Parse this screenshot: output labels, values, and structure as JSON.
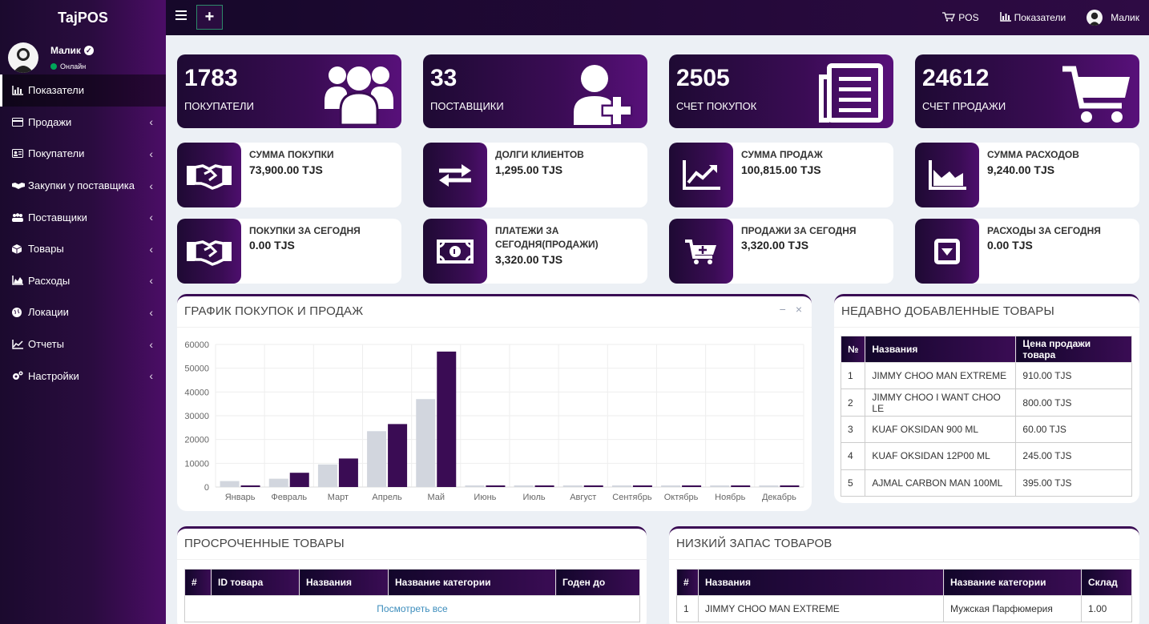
{
  "app": {
    "name": "TajPOS"
  },
  "user": {
    "name": "Малик",
    "status": "Онлайн"
  },
  "sidebar": {
    "items": [
      {
        "label": "Показатели",
        "icon": "bar-chart-icon"
      },
      {
        "label": "Продажи",
        "icon": "credit-card-icon"
      },
      {
        "label": "Покупатели",
        "icon": "id-card-icon"
      },
      {
        "label": "Закупки у поставщика",
        "icon": "handshake-icon"
      },
      {
        "label": "Поставщики",
        "icon": "users-icon"
      },
      {
        "label": "Товары",
        "icon": "cube-icon"
      },
      {
        "label": "Расходы",
        "icon": "area-chart-icon"
      },
      {
        "label": "Локации",
        "icon": "globe-icon"
      },
      {
        "label": "Отчеты",
        "icon": "line-chart-icon"
      },
      {
        "label": "Настройки",
        "icon": "cogs-icon"
      }
    ]
  },
  "topbar": {
    "pos_label": "POS",
    "stats_label": "Показатели",
    "user_label": "Малик"
  },
  "big_stats": [
    {
      "value": "1783",
      "label": "ПОКУПАТЕЛИ",
      "icon": "users-icon"
    },
    {
      "value": "33",
      "label": "ПОСТАВЩИКИ",
      "icon": "user-plus-icon"
    },
    {
      "value": "2505",
      "label": "СЧЕТ ПОКУПОК",
      "icon": "newspaper-icon"
    },
    {
      "value": "24612",
      "label": "СЧЕТ ПРОДАЖИ",
      "icon": "shopping-cart-icon"
    }
  ],
  "info_row1": [
    {
      "title": "СУММА ПОКУПКИ",
      "value": "73,900.00 TJS",
      "icon": "handshake-icon"
    },
    {
      "title": "ДОЛГИ КЛИЕНТОВ",
      "value": "1,295.00 TJS",
      "icon": "exchange-icon"
    },
    {
      "title": "СУММА ПРОДАЖ",
      "value": "100,815.00 TJS",
      "icon": "line-chart-icon"
    },
    {
      "title": "СУММА РАСХОДОВ",
      "value": "9,240.00 TJS",
      "icon": "area-chart-icon"
    }
  ],
  "info_row2": [
    {
      "title": "ПОКУПКИ ЗА СЕГОДНЯ",
      "value": "0.00 TJS",
      "icon": "handshake-icon"
    },
    {
      "title": "ПЛАТЕЖИ ЗА СЕГОДНЯ(ПРОДАЖИ)",
      "value": "3,320.00 TJS",
      "icon": "money-icon"
    },
    {
      "title": "ПРОДАЖИ ЗА СЕГОДНЯ",
      "value": "3,320.00 TJS",
      "icon": "cart-plus-icon"
    },
    {
      "title": "РАСХОДЫ ЗА СЕГОДНЯ",
      "value": "0.00 TJS",
      "icon": "caret-square-down-icon"
    }
  ],
  "chart_panel": {
    "title": "ГРАФИК ПОКУПОК И ПРОДАЖ"
  },
  "chart_data": {
    "type": "bar",
    "title": "",
    "categories": [
      "Январь",
      "Февраль",
      "Март",
      "Апрель",
      "Май",
      "Июнь",
      "Июль",
      "Август",
      "Сентябрь",
      "Октябрь",
      "Ноябрь",
      "Декабрь"
    ],
    "series": [
      {
        "values": [
          2500,
          3500,
          9500,
          23500,
          37000,
          0,
          0,
          0,
          0,
          0,
          0,
          0
        ],
        "color": "#d2d6de"
      },
      {
        "values": [
          0,
          6000,
          12000,
          26500,
          57000,
          0,
          0,
          0,
          0,
          0,
          0,
          0
        ],
        "color": "#3a0c54"
      }
    ],
    "ylim": [
      0,
      60000
    ],
    "yticks": [
      "0",
      "10000",
      "20000",
      "30000",
      "40000",
      "50000",
      "60000"
    ],
    "grid": true
  },
  "recent": {
    "title": "НЕДАВНО ДОБАВЛЕННЫЕ ТОВАРЫ",
    "headers": [
      "№",
      "Названия",
      "Цена продажи товара"
    ],
    "rows": [
      [
        "1",
        "JIMMY CHOO MAN EXTREME",
        "910.00 TJS"
      ],
      [
        "2",
        "JIMMY CHOO I WANT CHOO LE",
        "800.00 TJS"
      ],
      [
        "3",
        "KUAF OKSIDAN 900 ML",
        "60.00 TJS"
      ],
      [
        "4",
        "KUAF OKSIDAN 12P00 ML",
        "245.00 TJS"
      ],
      [
        "5",
        "AJMAL CARBON MAN 100ML",
        "395.00 TJS"
      ]
    ]
  },
  "expired": {
    "title": "ПРОСРОЧЕННЫЕ ТОВАРЫ",
    "headers": [
      "#",
      "ID товара",
      "Названия",
      "Название категории",
      "Годен до"
    ],
    "view_all": "Посмотреть все"
  },
  "low_stock": {
    "title": "НИЗКИЙ ЗАПАС ТОВАРОВ",
    "headers": [
      "#",
      "Названия",
      "Название категории",
      "Склад"
    ],
    "rows": [
      [
        "1",
        "JIMMY CHOO MAN EXTREME",
        "Мужская Парфюмерия",
        "1.00"
      ]
    ]
  }
}
